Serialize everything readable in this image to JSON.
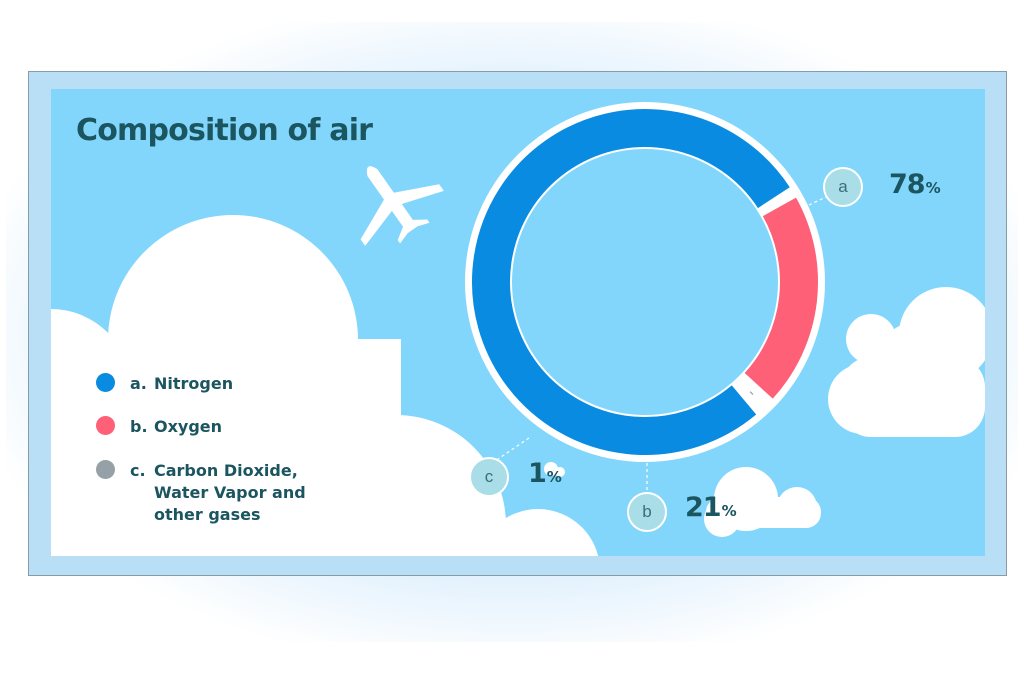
{
  "title": "Composition of air",
  "legend": [
    {
      "letter": "a.",
      "text": "Nitrogen",
      "color": "#0a8be2"
    },
    {
      "letter": "b.",
      "text": "Oxygen",
      "color": "#fd6077"
    },
    {
      "letter": "c.",
      "text": "Carbon Dioxide, Water Vapor and other gases",
      "color": "#95a1a6"
    }
  ],
  "callouts": [
    {
      "badge": "a",
      "value": "78",
      "unit": "%"
    },
    {
      "badge": "b",
      "value": "21",
      "unit": "%"
    },
    {
      "badge": "c",
      "value": "1",
      "unit": "%"
    }
  ],
  "colors": {
    "panel": "#82d6fb",
    "title": "#1b5560",
    "nitrogen": "#0a8be2",
    "oxygen": "#fd6077",
    "other": "#95a1a6"
  },
  "icons": [
    "airplane-icon",
    "cloud-icon"
  ],
  "chart_data": {
    "type": "pie",
    "variant": "donut",
    "title": "Composition of air",
    "categories": [
      "Nitrogen",
      "Oxygen",
      "Carbon Dioxide, Water Vapor and other gases"
    ],
    "labels": [
      "a",
      "b",
      "c"
    ],
    "values": [
      78,
      21,
      1
    ],
    "unit": "%",
    "legend": "left"
  }
}
